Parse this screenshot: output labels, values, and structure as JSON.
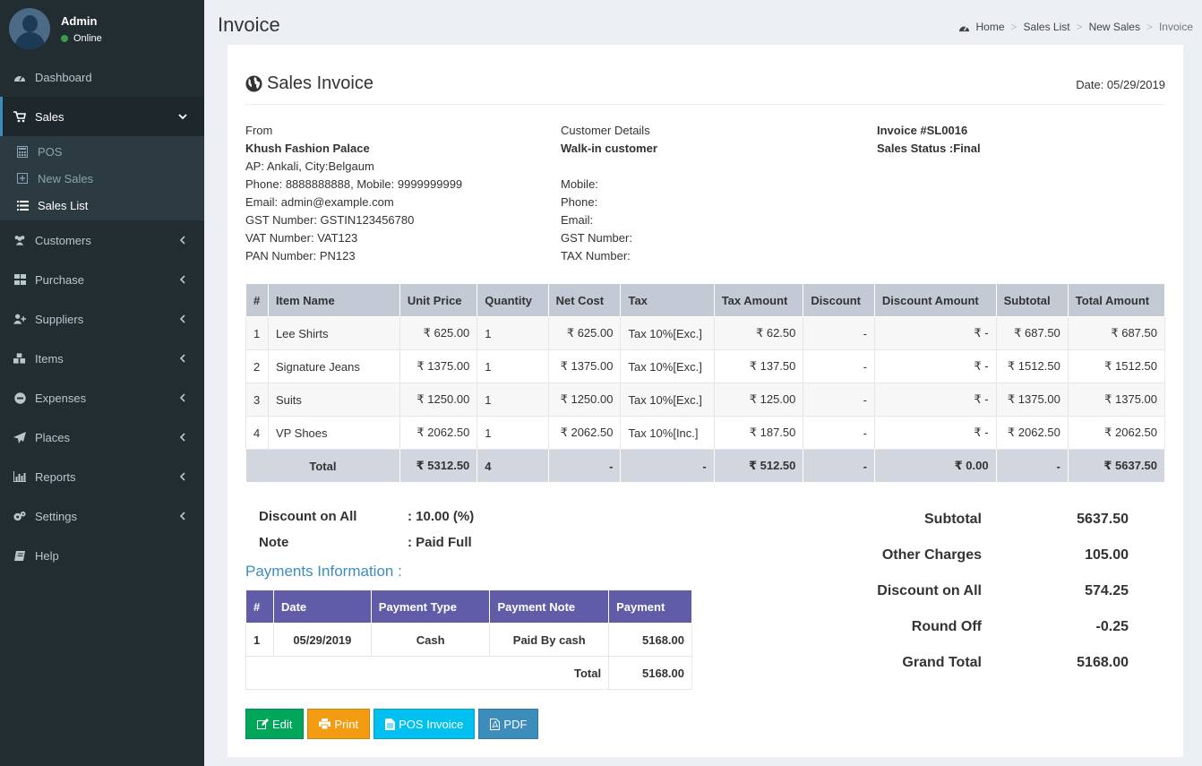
{
  "user": {
    "name": "Admin",
    "status": "Online"
  },
  "menu": {
    "dashboard": "Dashboard",
    "sales": "Sales",
    "sales_sub": {
      "pos": "POS",
      "new_sales": "New Sales",
      "sales_list": "Sales List"
    },
    "customers": "Customers",
    "purchase": "Purchase",
    "suppliers": "Suppliers",
    "items": "Items",
    "expenses": "Expenses",
    "places": "Places",
    "reports": "Reports",
    "settings": "Settings",
    "help": "Help"
  },
  "page": {
    "title": "Invoice"
  },
  "breadcrumb": {
    "home": "Home",
    "sales_list": "Sales List",
    "new_sales": "New Sales",
    "current": "Invoice"
  },
  "invoice": {
    "heading": "Sales Invoice",
    "date": "Date: 05/29/2019",
    "from": {
      "label": "From",
      "company": "Khush Fashion Palace",
      "address": "AP: Ankali, City:Belgaum",
      "phone": "Phone: 8888888888, Mobile: 9999999999",
      "email": "Email: admin@example.com",
      "gst": "GST Number: GSTIN123456780",
      "vat": "VAT Number: VAT123",
      "pan": "PAN Number: PN123"
    },
    "customer": {
      "label": "Customer Details",
      "name": "Walk-in customer",
      "mobile": "Mobile:",
      "phone": "Phone:",
      "email": "Email:",
      "gst": "GST Number:",
      "tax": "TAX Number:"
    },
    "meta": {
      "number": "Invoice #SL0016",
      "status": "Sales Status :Final"
    }
  },
  "items_table": {
    "headers": [
      "#",
      "Item Name",
      "Unit Price",
      "Quantity",
      "Net Cost",
      "Tax",
      "Tax Amount",
      "Discount",
      "Discount Amount",
      "Subtotal",
      "Total Amount"
    ],
    "rows": [
      [
        "1",
        "Lee Shirts",
        "₹ 625.00",
        "1",
        "₹ 625.00",
        "Tax 10%[Exc.]",
        "₹ 62.50",
        "-",
        "₹ -",
        "₹ 687.50",
        "₹ 687.50"
      ],
      [
        "2",
        "Signature Jeans",
        "₹ 1375.00",
        "1",
        "₹ 1375.00",
        "Tax 10%[Exc.]",
        "₹ 137.50",
        "-",
        "₹ -",
        "₹ 1512.50",
        "₹ 1512.50"
      ],
      [
        "3",
        "Suits",
        "₹ 1250.00",
        "1",
        "₹ 1250.00",
        "Tax 10%[Exc.]",
        "₹ 125.00",
        "-",
        "₹ -",
        "₹ 1375.00",
        "₹ 1375.00"
      ],
      [
        "4",
        "VP Shoes",
        "₹ 2062.50",
        "1",
        "₹ 2062.50",
        "Tax 10%[Inc.]",
        "₹ 187.50",
        "-",
        "₹ -",
        "₹ 2062.50",
        "₹ 2062.50"
      ]
    ],
    "total": {
      "label": "Total",
      "unit_price": "₹ 5312.50",
      "quantity": "4",
      "net_cost": "-",
      "tax": "-",
      "tax_amount": "₹ 512.50",
      "discount": "-",
      "discount_amount": "₹ 0.00",
      "subtotal": "-",
      "total_amount": "₹ 5637.50"
    }
  },
  "discount_note": {
    "discount_label": "Discount on All",
    "discount_value": ": 10.00 (%)",
    "note_label": "Note",
    "note_value": ": Paid Full"
  },
  "payments": {
    "title": "Payments Information :",
    "headers": [
      "#",
      "Date",
      "Payment Type",
      "Payment Note",
      "Payment"
    ],
    "rows": [
      [
        "1",
        "05/29/2019",
        "Cash",
        "Paid By cash",
        "5168.00"
      ]
    ],
    "total_label": "Total",
    "total_value": "5168.00"
  },
  "summary": [
    {
      "label": "Subtotal",
      "value": "5637.50"
    },
    {
      "label": "Other Charges",
      "value": "105.00"
    },
    {
      "label": "Discount on All",
      "value": "574.25"
    },
    {
      "label": "Round Off",
      "value": "-0.25"
    },
    {
      "label": "Grand Total",
      "value": "5168.00"
    }
  ],
  "buttons": {
    "edit": "Edit",
    "print": "Print",
    "pos_invoice": "POS Invoice",
    "pdf": "PDF"
  },
  "colors": {
    "sidebar": "#222d32",
    "accent": "#3c8dbc",
    "table_header": "#c4c9d6",
    "payment_header": "#605ca8",
    "green": "#00a65a",
    "orange": "#f39c12",
    "aqua": "#00c0ef"
  }
}
